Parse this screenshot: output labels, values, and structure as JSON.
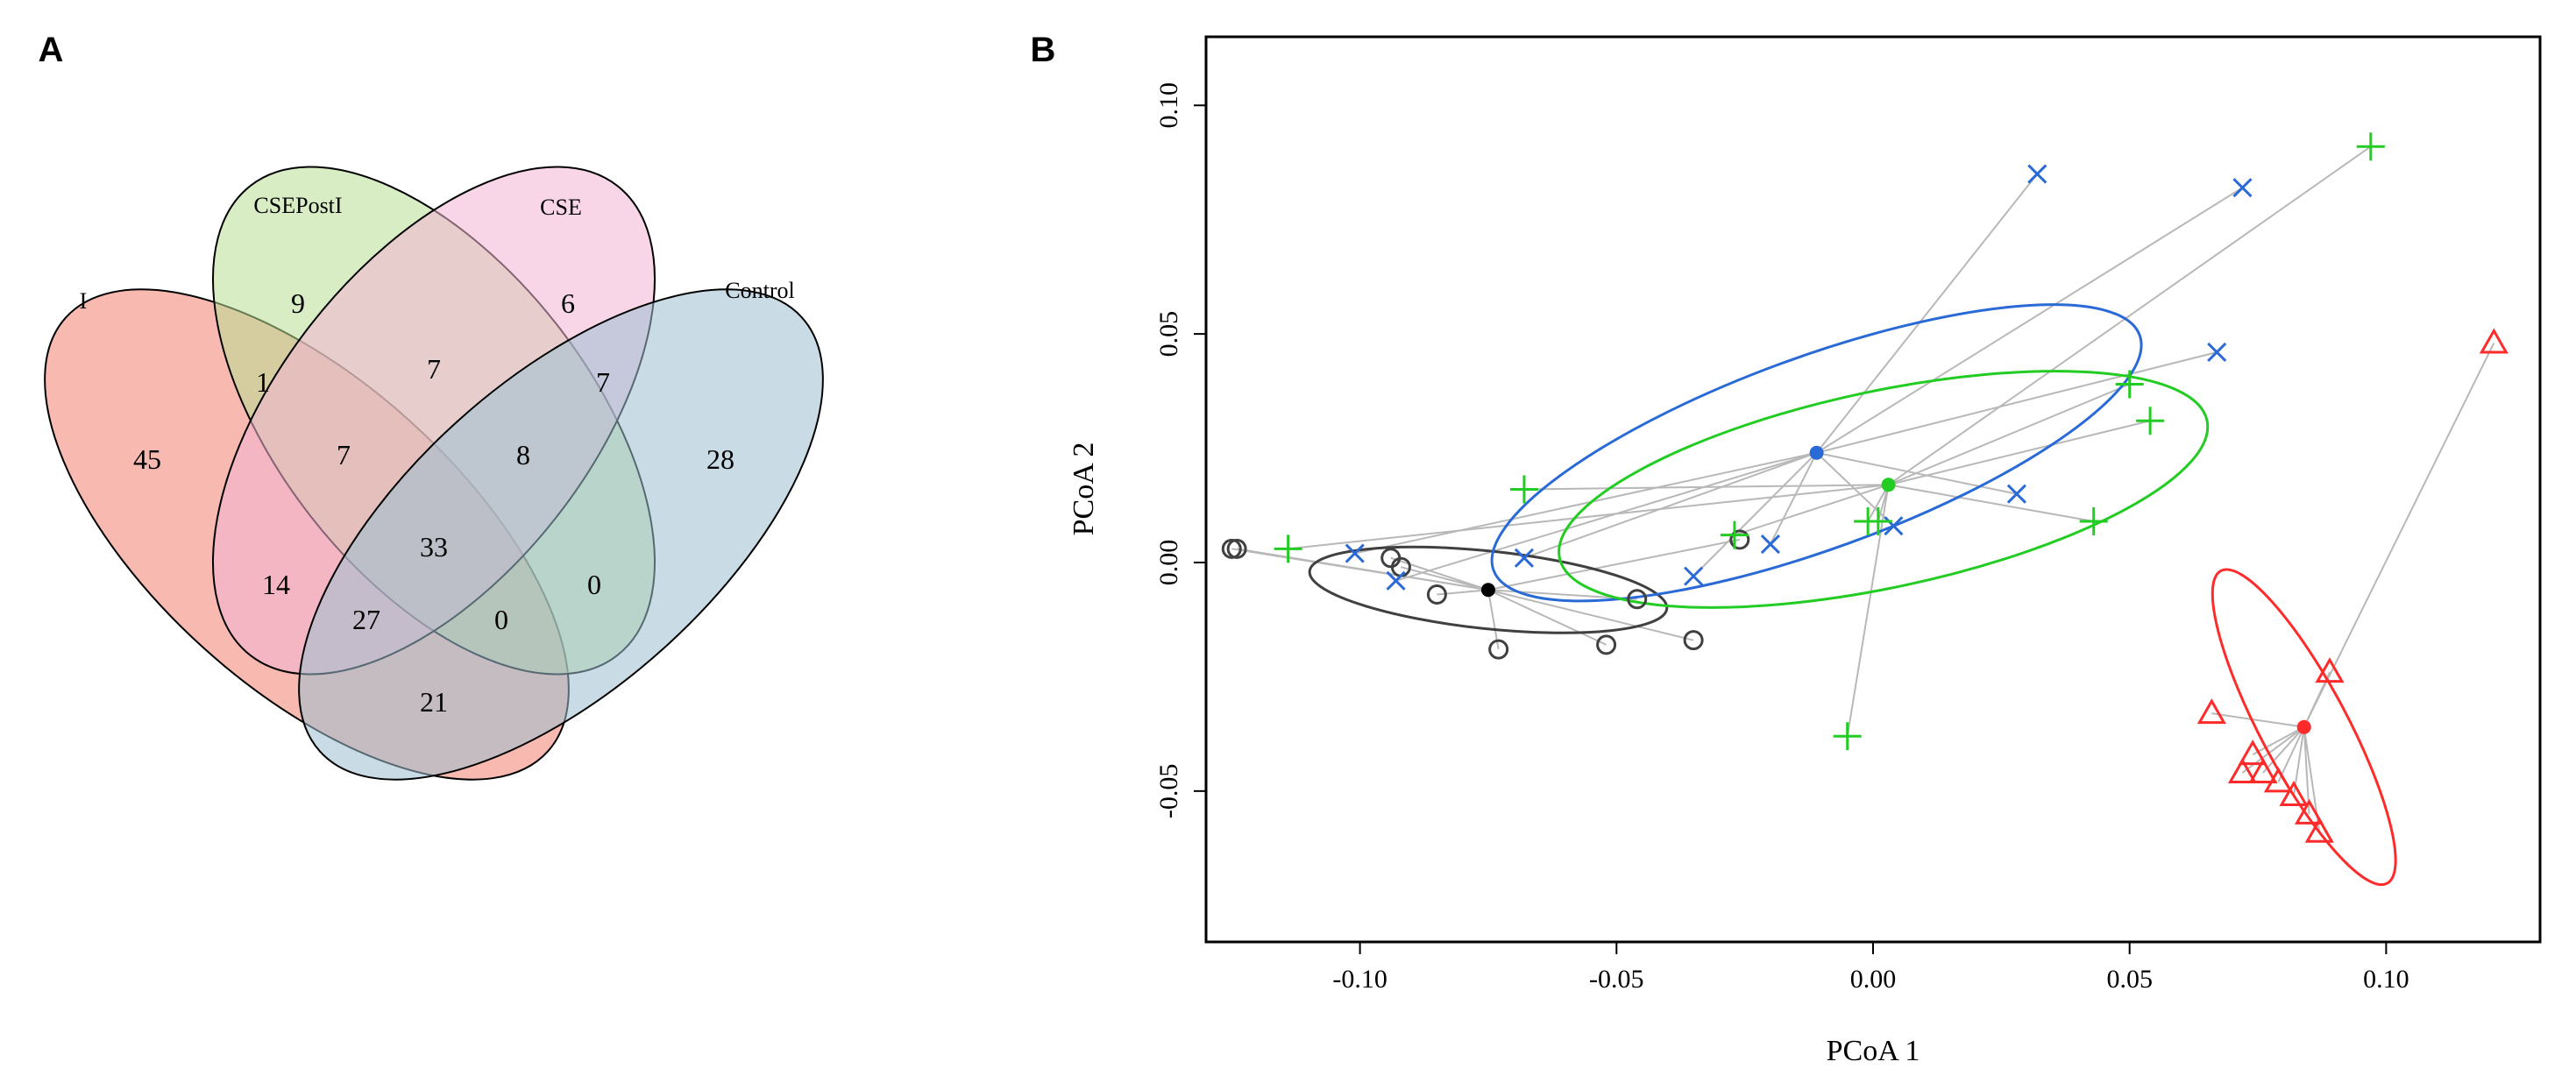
{
  "panels": {
    "a_label": "A",
    "b_label": "B"
  },
  "chart_data": [
    {
      "type": "venn",
      "panel": "A",
      "sets": [
        "I",
        "CSEPostI",
        "CSE",
        "Control"
      ],
      "colors": {
        "I": "#f08070",
        "CSEPostI": "#b9de93",
        "CSE": "#f2b4d4",
        "Control": "#9dbfd2"
      },
      "regions": {
        "I": 45,
        "CSEPostI": 9,
        "CSE": 6,
        "Control": 28,
        "I&CSEPostI": 1,
        "CSEPostI&CSE": 7,
        "CSE&Control": 7,
        "I&CSEPostI&CSE": 7,
        "CSEPostI&CSE&Control": 8,
        "I&CSEPostI&CSE&Control": 33,
        "I&CSE": 14,
        "I&CSE&Control": 27,
        "I&CSEPostI&Control": 0,
        "CSEPostI&Control": 0,
        "I&Control": 21
      }
    },
    {
      "type": "scatter",
      "panel": "B",
      "xlabel": "PCoA 1",
      "ylabel": "PCoA 2",
      "xlim": [
        -0.13,
        0.13
      ],
      "ylim": [
        -0.083,
        0.115
      ],
      "xticks": [
        -0.1,
        -0.05,
        0.0,
        0.05,
        0.1
      ],
      "xtick_labels": [
        "-0.10",
        "-0.05",
        "0.00",
        "0.05",
        "0.10"
      ],
      "yticks": [
        -0.05,
        0.0,
        0.05,
        0.1
      ],
      "ytick_labels": [
        "-0.05",
        "0.00",
        "0.05",
        "0.10"
      ],
      "spider_color": "#b8b8b8",
      "groups": [
        {
          "name": "black",
          "color": "#404040",
          "marker": "circle",
          "centroid": [
            -0.075,
            -0.006
          ],
          "ellipse": {
            "center": [
              -0.075,
              -0.006
            ],
            "rx": 0.035,
            "ry": 0.0085,
            "angle_deg": -6
          },
          "points": [
            [
              -0.125,
              0.003
            ],
            [
              -0.124,
              0.003
            ],
            [
              -0.094,
              0.001
            ],
            [
              -0.092,
              -0.001
            ],
            [
              -0.085,
              -0.007
            ],
            [
              -0.073,
              -0.019
            ],
            [
              -0.052,
              -0.018
            ],
            [
              -0.046,
              -0.008
            ],
            [
              -0.035,
              -0.017
            ],
            [
              -0.026,
              0.005
            ]
          ]
        },
        {
          "name": "blue",
          "color": "#2a6ad6",
          "marker": "x",
          "centroid": [
            -0.011,
            0.024
          ],
          "ellipse": {
            "center": [
              -0.011,
              0.024
            ],
            "rx": 0.067,
            "ry": 0.021,
            "angle_deg": 20
          },
          "points": [
            [
              -0.101,
              0.002
            ],
            [
              -0.093,
              -0.004
            ],
            [
              -0.068,
              0.001
            ],
            [
              -0.035,
              -0.003
            ],
            [
              -0.02,
              0.004
            ],
            [
              0.004,
              0.008
            ],
            [
              0.028,
              0.015
            ],
            [
              0.032,
              0.085
            ],
            [
              0.067,
              0.046
            ],
            [
              0.072,
              0.082
            ]
          ]
        },
        {
          "name": "green",
          "color": "#22cc22",
          "marker": "plus",
          "centroid": [
            0.003,
            0.017
          ],
          "ellipse": {
            "center": [
              0.002,
              0.016
            ],
            "rx": 0.0645,
            "ry": 0.0215,
            "angle_deg": 12
          },
          "points": [
            [
              -0.114,
              0.003
            ],
            [
              -0.068,
              0.016
            ],
            [
              -0.027,
              0.006
            ],
            [
              -0.005,
              -0.038
            ],
            [
              -0.001,
              0.009
            ],
            [
              0.001,
              0.009
            ],
            [
              0.043,
              0.009
            ],
            [
              0.05,
              0.039
            ],
            [
              0.054,
              0.031
            ],
            [
              0.097,
              0.091
            ]
          ]
        },
        {
          "name": "red",
          "color": "#ff2a2a",
          "marker": "triangle",
          "centroid": [
            0.084,
            -0.036
          ],
          "ellipse": {
            "center": [
              0.084,
              -0.036
            ],
            "rx": 0.0345,
            "ry": 0.0095,
            "angle_deg": -62
          },
          "points": [
            [
              0.066,
              -0.033
            ],
            [
              0.072,
              -0.046
            ],
            [
              0.074,
              -0.042
            ],
            [
              0.076,
              -0.046
            ],
            [
              0.079,
              -0.048
            ],
            [
              0.082,
              -0.051
            ],
            [
              0.085,
              -0.055
            ],
            [
              0.087,
              -0.059
            ],
            [
              0.089,
              -0.024
            ],
            [
              0.121,
              0.048
            ]
          ]
        }
      ]
    }
  ]
}
